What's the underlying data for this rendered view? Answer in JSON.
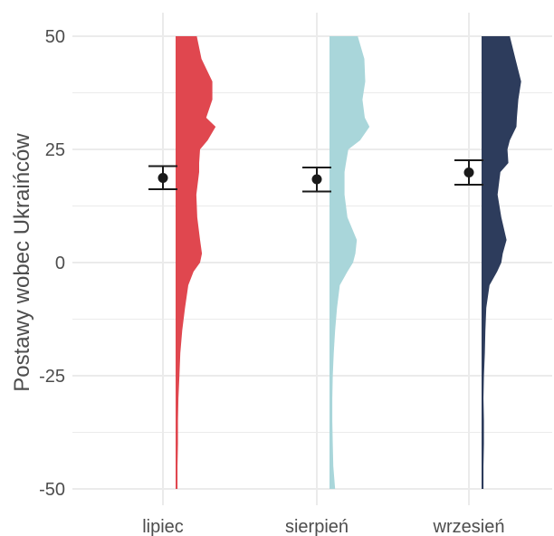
{
  "chart_data": {
    "type": "raincloud",
    "title": "",
    "xlabel": "",
    "ylabel": "Postawy wobec Ukraińców",
    "ylim": [
      -50,
      50
    ],
    "y_ticks": [
      -50,
      -25,
      0,
      25,
      50
    ],
    "y_tick_labels": [
      "-50",
      "-25",
      "0",
      "25",
      "50"
    ],
    "categories": [
      "lipiec",
      "sierpień",
      "wrzesień"
    ],
    "grid": true,
    "legend": "none",
    "colors": [
      "#e0474f",
      "#a9d6da",
      "#2d3c5c"
    ],
    "point_color": "#1a1a1a",
    "grid_color": "#ebebeb",
    "series": [
      {
        "category": "lipiec",
        "mean": 18.7,
        "ci_low": 16.2,
        "ci_high": 21.3,
        "density_y": [
          50,
          45,
          40,
          36,
          32,
          30,
          27,
          25,
          22,
          20,
          15,
          10,
          5,
          2,
          0,
          -2,
          -5,
          -10,
          -15,
          -20,
          -25,
          -30,
          -35,
          -40,
          -45,
          -50
        ],
        "density_w": [
          0.45,
          0.55,
          0.78,
          0.78,
          0.65,
          0.85,
          0.68,
          0.52,
          0.5,
          0.5,
          0.44,
          0.46,
          0.52,
          0.56,
          0.52,
          0.38,
          0.27,
          0.2,
          0.14,
          0.1,
          0.08,
          0.06,
          0.05,
          0.05,
          0.04,
          0.04
        ]
      },
      {
        "category": "sierpień",
        "mean": 18.4,
        "ci_low": 15.7,
        "ci_high": 21.0,
        "density_y": [
          50,
          45,
          40,
          36,
          32,
          30,
          27,
          25,
          22,
          20,
          15,
          10,
          5,
          2,
          0,
          -2,
          -5,
          -10,
          -15,
          -20,
          -25,
          -30,
          -35,
          -40,
          -45,
          -50
        ],
        "density_w": [
          0.6,
          0.74,
          0.76,
          0.7,
          0.75,
          0.85,
          0.65,
          0.4,
          0.35,
          0.32,
          0.32,
          0.38,
          0.58,
          0.55,
          0.5,
          0.38,
          0.22,
          0.16,
          0.12,
          0.09,
          0.07,
          0.06,
          0.06,
          0.07,
          0.08,
          0.12
        ]
      },
      {
        "category": "wrzesień",
        "mean": 19.9,
        "ci_low": 17.2,
        "ci_high": 22.6,
        "density_y": [
          50,
          45,
          40,
          36,
          32,
          30,
          27,
          25,
          22,
          20,
          15,
          10,
          5,
          2,
          0,
          -2,
          -5,
          -10,
          -15,
          -20,
          -25,
          -30,
          -35,
          -40,
          -45,
          -50
        ],
        "density_w": [
          0.6,
          0.72,
          0.84,
          0.78,
          0.75,
          0.74,
          0.6,
          0.55,
          0.57,
          0.4,
          0.34,
          0.42,
          0.53,
          0.45,
          0.42,
          0.33,
          0.17,
          0.1,
          0.08,
          0.07,
          0.05,
          0.04,
          0.05,
          0.05,
          0.04,
          0.04
        ]
      }
    ]
  }
}
